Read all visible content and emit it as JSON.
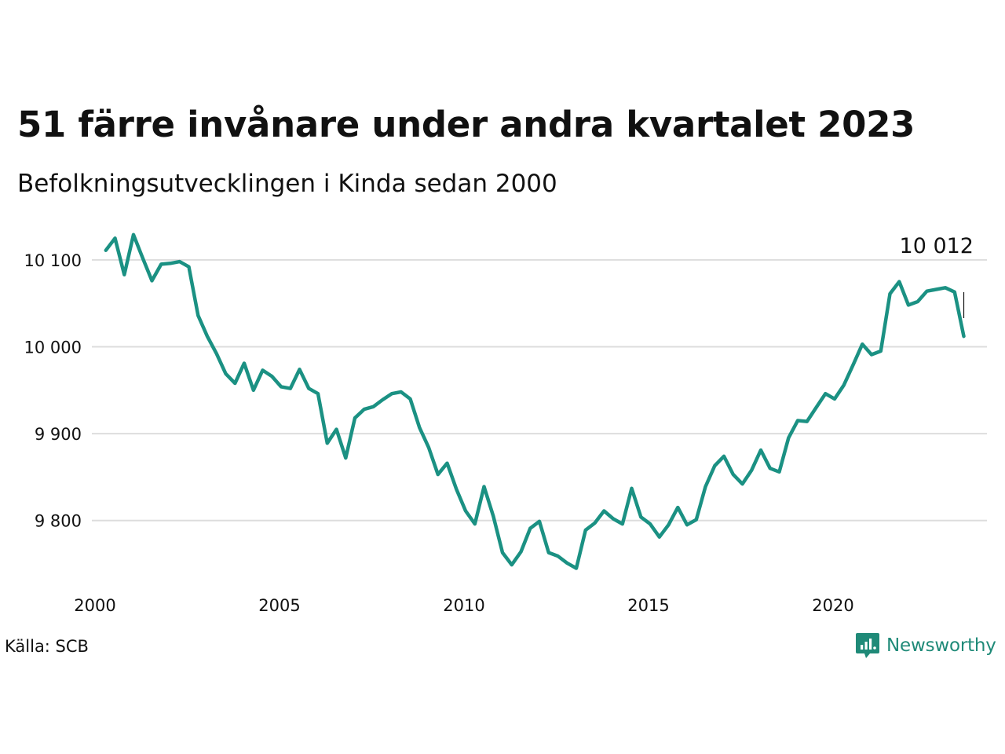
{
  "header": {
    "title": "51 färre invånare under andra kvartalet 2023",
    "subtitle": "Befolkningsutvecklingen i Kinda sedan 2000"
  },
  "footer": {
    "source": "Källa: SCB",
    "brand": "Newsworthy"
  },
  "colors": {
    "line": "#1b9183",
    "grid": "#dddddd",
    "text": "#111111",
    "brand": "#1f8a78"
  },
  "chart_data": {
    "type": "line",
    "title": "51 färre invånare under andra kvartalet 2023",
    "subtitle": "Befolkningsutvecklingen i Kinda sedan 2000",
    "xlabel": "",
    "ylabel": "",
    "xlim": [
      2000,
      2024
    ],
    "ylim": [
      9735,
      10120
    ],
    "x_ticks": [
      2000,
      2005,
      2010,
      2015,
      2020
    ],
    "x_tick_labels": [
      "2000",
      "2005",
      "2010",
      "2015",
      "2020"
    ],
    "y_ticks": [
      9800,
      9900,
      10000,
      10100
    ],
    "y_tick_labels": [
      "9 800",
      "9 900",
      "10 000",
      "10 100"
    ],
    "grid": true,
    "end_label": "10 012",
    "series": [
      {
        "x": [
          2000.25,
          2000.5,
          2000.75,
          2001.0,
          2001.25,
          2001.5,
          2001.75,
          2002.0,
          2002.25,
          2002.5,
          2002.75,
          2003.0,
          2003.25,
          2003.5,
          2003.75,
          2004.0,
          2004.25,
          2004.5,
          2004.75,
          2005.0,
          2005.25,
          2005.5,
          2005.75,
          2006.0,
          2006.25,
          2006.5,
          2006.75,
          2007.0,
          2007.25,
          2007.5,
          2007.75,
          2008.0,
          2008.25,
          2008.5,
          2008.75,
          2009.0,
          2009.25,
          2009.5,
          2009.75,
          2010.0,
          2010.25,
          2010.5,
          2010.75,
          2011.0,
          2011.25,
          2011.5,
          2011.75,
          2012.0,
          2012.25,
          2012.5,
          2012.75,
          2013.0,
          2013.25,
          2013.5,
          2013.75,
          2014.0,
          2014.25,
          2014.5,
          2014.75,
          2015.0,
          2015.25,
          2015.5,
          2015.75,
          2016.0,
          2016.25,
          2016.5,
          2016.75,
          2017.0,
          2017.25,
          2017.5,
          2017.75,
          2018.0,
          2018.25,
          2018.5,
          2018.75,
          2019.0,
          2019.25,
          2019.5,
          2019.75,
          2020.0,
          2020.25,
          2020.5,
          2020.75,
          2021.0,
          2021.25,
          2021.5,
          2021.75,
          2022.0,
          2022.25,
          2022.5,
          2022.75,
          2023.0,
          2023.25,
          2023.5
        ],
        "y": [
          10111,
          10125,
          10083,
          10129,
          10102,
          10076,
          10095,
          10096,
          10098,
          10092,
          10036,
          10012,
          9992,
          9969,
          9958,
          9981,
          9950,
          9973,
          9966,
          9954,
          9952,
          9974,
          9952,
          9946,
          9889,
          9905,
          9872,
          9918,
          9928,
          9931,
          9939,
          9946,
          9948,
          9940,
          9907,
          9884,
          9853,
          9866,
          9836,
          9811,
          9796,
          9839,
          9805,
          9763,
          9749,
          9764,
          9791,
          9799,
          9763,
          9759,
          9751,
          9745,
          9789,
          9797,
          9811,
          9802,
          9796,
          9837,
          9804,
          9796,
          9781,
          9795,
          9815,
          9795,
          9801,
          9839,
          9863,
          9874,
          9853,
          9842,
          9858,
          9881,
          9860,
          9856,
          9895,
          9915,
          9914,
          9930,
          9946,
          9940,
          9956,
          9979,
          10003,
          9991,
          9995,
          10061,
          10075,
          10048,
          10052,
          10064,
          10066,
          10068,
          10063,
          10012
        ]
      }
    ]
  }
}
